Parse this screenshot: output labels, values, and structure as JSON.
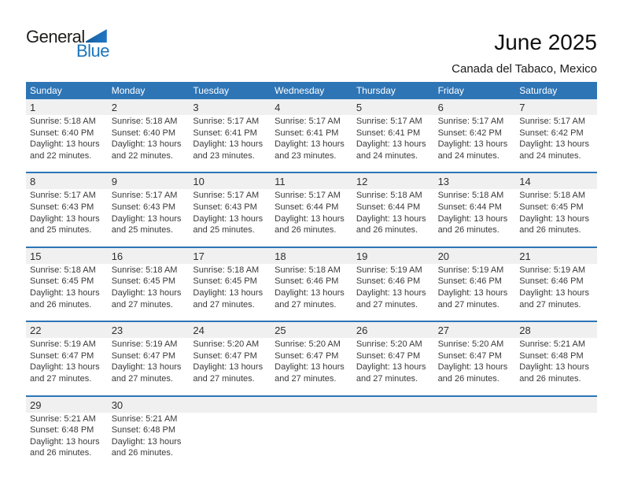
{
  "logo": {
    "line1": "General",
    "line2": "Blue",
    "triangle_color": "#1b6cb5"
  },
  "header": {
    "title": "June 2025",
    "subtitle": "Canada del Tabaco, Mexico"
  },
  "calendar": {
    "accent_color": "#2e75b6",
    "number_band_color": "#f0f0f0",
    "weekday_headers": [
      "Sunday",
      "Monday",
      "Tuesday",
      "Wednesday",
      "Thursday",
      "Friday",
      "Saturday"
    ],
    "labels": {
      "sunrise": "Sunrise:",
      "sunset": "Sunset:",
      "daylight": "Daylight:"
    },
    "weeks": [
      [
        {
          "day": "1",
          "sunrise": "5:18 AM",
          "sunset": "6:40 PM",
          "daylight": "13 hours and 22 minutes."
        },
        {
          "day": "2",
          "sunrise": "5:18 AM",
          "sunset": "6:40 PM",
          "daylight": "13 hours and 22 minutes."
        },
        {
          "day": "3",
          "sunrise": "5:17 AM",
          "sunset": "6:41 PM",
          "daylight": "13 hours and 23 minutes."
        },
        {
          "day": "4",
          "sunrise": "5:17 AM",
          "sunset": "6:41 PM",
          "daylight": "13 hours and 23 minutes."
        },
        {
          "day": "5",
          "sunrise": "5:17 AM",
          "sunset": "6:41 PM",
          "daylight": "13 hours and 24 minutes."
        },
        {
          "day": "6",
          "sunrise": "5:17 AM",
          "sunset": "6:42 PM",
          "daylight": "13 hours and 24 minutes."
        },
        {
          "day": "7",
          "sunrise": "5:17 AM",
          "sunset": "6:42 PM",
          "daylight": "13 hours and 24 minutes."
        }
      ],
      [
        {
          "day": "8",
          "sunrise": "5:17 AM",
          "sunset": "6:43 PM",
          "daylight": "13 hours and 25 minutes."
        },
        {
          "day": "9",
          "sunrise": "5:17 AM",
          "sunset": "6:43 PM",
          "daylight": "13 hours and 25 minutes."
        },
        {
          "day": "10",
          "sunrise": "5:17 AM",
          "sunset": "6:43 PM",
          "daylight": "13 hours and 25 minutes."
        },
        {
          "day": "11",
          "sunrise": "5:17 AM",
          "sunset": "6:44 PM",
          "daylight": "13 hours and 26 minutes."
        },
        {
          "day": "12",
          "sunrise": "5:18 AM",
          "sunset": "6:44 PM",
          "daylight": "13 hours and 26 minutes."
        },
        {
          "day": "13",
          "sunrise": "5:18 AM",
          "sunset": "6:44 PM",
          "daylight": "13 hours and 26 minutes."
        },
        {
          "day": "14",
          "sunrise": "5:18 AM",
          "sunset": "6:45 PM",
          "daylight": "13 hours and 26 minutes."
        }
      ],
      [
        {
          "day": "15",
          "sunrise": "5:18 AM",
          "sunset": "6:45 PM",
          "daylight": "13 hours and 26 minutes."
        },
        {
          "day": "16",
          "sunrise": "5:18 AM",
          "sunset": "6:45 PM",
          "daylight": "13 hours and 27 minutes."
        },
        {
          "day": "17",
          "sunrise": "5:18 AM",
          "sunset": "6:45 PM",
          "daylight": "13 hours and 27 minutes."
        },
        {
          "day": "18",
          "sunrise": "5:18 AM",
          "sunset": "6:46 PM",
          "daylight": "13 hours and 27 minutes."
        },
        {
          "day": "19",
          "sunrise": "5:19 AM",
          "sunset": "6:46 PM",
          "daylight": "13 hours and 27 minutes."
        },
        {
          "day": "20",
          "sunrise": "5:19 AM",
          "sunset": "6:46 PM",
          "daylight": "13 hours and 27 minutes."
        },
        {
          "day": "21",
          "sunrise": "5:19 AM",
          "sunset": "6:46 PM",
          "daylight": "13 hours and 27 minutes."
        }
      ],
      [
        {
          "day": "22",
          "sunrise": "5:19 AM",
          "sunset": "6:47 PM",
          "daylight": "13 hours and 27 minutes."
        },
        {
          "day": "23",
          "sunrise": "5:19 AM",
          "sunset": "6:47 PM",
          "daylight": "13 hours and 27 minutes."
        },
        {
          "day": "24",
          "sunrise": "5:20 AM",
          "sunset": "6:47 PM",
          "daylight": "13 hours and 27 minutes."
        },
        {
          "day": "25",
          "sunrise": "5:20 AM",
          "sunset": "6:47 PM",
          "daylight": "13 hours and 27 minutes."
        },
        {
          "day": "26",
          "sunrise": "5:20 AM",
          "sunset": "6:47 PM",
          "daylight": "13 hours and 27 minutes."
        },
        {
          "day": "27",
          "sunrise": "5:20 AM",
          "sunset": "6:47 PM",
          "daylight": "13 hours and 26 minutes."
        },
        {
          "day": "28",
          "sunrise": "5:21 AM",
          "sunset": "6:48 PM",
          "daylight": "13 hours and 26 minutes."
        }
      ],
      [
        {
          "day": "29",
          "sunrise": "5:21 AM",
          "sunset": "6:48 PM",
          "daylight": "13 hours and 26 minutes."
        },
        {
          "day": "30",
          "sunrise": "5:21 AM",
          "sunset": "6:48 PM",
          "daylight": "13 hours and 26 minutes."
        },
        null,
        null,
        null,
        null,
        null
      ]
    ]
  }
}
